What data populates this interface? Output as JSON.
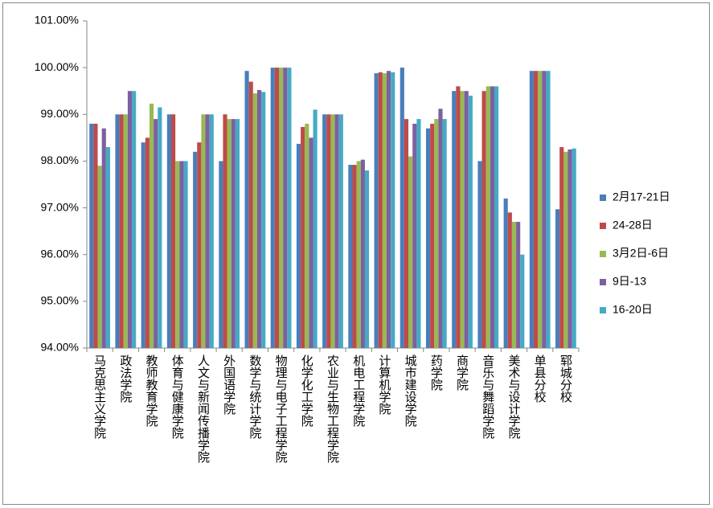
{
  "chart_data": {
    "type": "bar",
    "categories": [
      "马克思主义学院",
      "政法学院",
      "教师教育学院",
      "体育与健康学院",
      "人文与新闻传播学院",
      "外国语学院",
      "数学与统计学院",
      "物理与电子工程学院",
      "化学化工学院",
      "农业与生物工程学院",
      "机电工程学院",
      "计算机学院",
      "城市建设学院",
      "药学院",
      "商学院",
      "音乐与舞蹈学院",
      "美术与设计学院",
      "单县分校",
      "郓城分校"
    ],
    "series": [
      {
        "name": "2月17-21日",
        "color": "#4a7ebb",
        "values": [
          98.8,
          99.0,
          98.4,
          99.0,
          98.2,
          98.0,
          99.93,
          100,
          98.37,
          99,
          97.92,
          99.88,
          100.0,
          98.7,
          99.5,
          98.0,
          97.2,
          99.93,
          96.97
        ]
      },
      {
        "name": "24-28日",
        "color": "#be4b48",
        "values": [
          98.8,
          99.0,
          98.5,
          99.0,
          98.4,
          99.0,
          99.7,
          100,
          98.73,
          99,
          97.92,
          99.9,
          98.9,
          98.8,
          99.6,
          99.5,
          96.9,
          99.93,
          98.3
        ]
      },
      {
        "name": "3月2日-6日",
        "color": "#98b954",
        "values": [
          97.9,
          99.0,
          99.23,
          98.0,
          99.0,
          98.9,
          99.45,
          100,
          98.8,
          99,
          98.0,
          99.88,
          98.1,
          98.9,
          99.5,
          99.6,
          96.7,
          99.93,
          98.2
        ]
      },
      {
        "name": "9日-13",
        "color": "#7d60a0",
        "values": [
          98.7,
          99.5,
          98.9,
          98.0,
          99.0,
          98.9,
          99.52,
          100,
          98.5,
          99,
          98.03,
          99.93,
          98.8,
          99.12,
          99.5,
          99.6,
          96.7,
          99.93,
          98.25
        ]
      },
      {
        "name": "16-20日",
        "color": "#46aac5",
        "values": [
          98.3,
          99.5,
          99.15,
          98.0,
          99.0,
          98.9,
          99.48,
          100,
          99.1,
          99,
          97.8,
          99.9,
          98.9,
          98.9,
          99.4,
          99.6,
          96.0,
          99.93,
          98.27
        ]
      }
    ],
    "ylim": [
      94,
      101
    ],
    "yticks": [
      {
        "value": 94,
        "label": "94.00%"
      },
      {
        "value": 95,
        "label": "95.00%"
      },
      {
        "value": 96,
        "label": "96.00%"
      },
      {
        "value": 97,
        "label": "97.00%"
      },
      {
        "value": 98,
        "label": "98.00%"
      },
      {
        "value": 99,
        "label": "99.00%"
      },
      {
        "value": 100,
        "label": "100.00%"
      },
      {
        "value": 101,
        "label": "101.00%"
      }
    ],
    "grid": false,
    "legend": "right"
  }
}
